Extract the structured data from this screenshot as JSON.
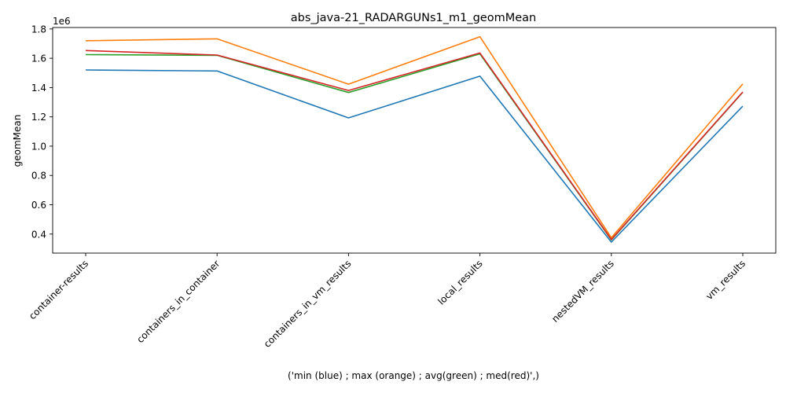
{
  "chart_data": {
    "type": "line",
    "title": "abs_java-21_RADARGUNs1_m1_geomMean",
    "xlabel": "('min (blue) ; max (orange) ; avg(green) ; med(red)',)",
    "ylabel": "geomMean",
    "y_offset_label": "1e6",
    "y_scale_factor": 1000000,
    "ylim": [
      270000,
      1810000
    ],
    "y_ticks": [
      400000,
      600000,
      800000,
      1000000,
      1200000,
      1400000,
      1600000,
      1800000
    ],
    "y_tick_labels": [
      "0.4",
      "0.6",
      "0.8",
      "1.0",
      "1.2",
      "1.4",
      "1.6",
      "1.8"
    ],
    "categories": [
      "container-results",
      "containers_in_container",
      "containers_in_vm_results",
      "local_results",
      "nestedVM_results",
      "vm_results"
    ],
    "grid": false,
    "legend": "none",
    "series": [
      {
        "color": "#1f77b4",
        "values": [
          1520000,
          1513000,
          1193000,
          1478000,
          345000,
          1273000
        ]
      },
      {
        "color": "#ff7f0e",
        "values": [
          1720000,
          1733000,
          1423000,
          1747000,
          375000,
          1425000
        ]
      },
      {
        "color": "#2ca02c",
        "values": [
          1625000,
          1620000,
          1366000,
          1630000,
          360000,
          1368000
        ]
      },
      {
        "color": "#d62728",
        "values": [
          1653000,
          1622000,
          1380000,
          1636000,
          363000,
          1370000
        ]
      }
    ]
  }
}
